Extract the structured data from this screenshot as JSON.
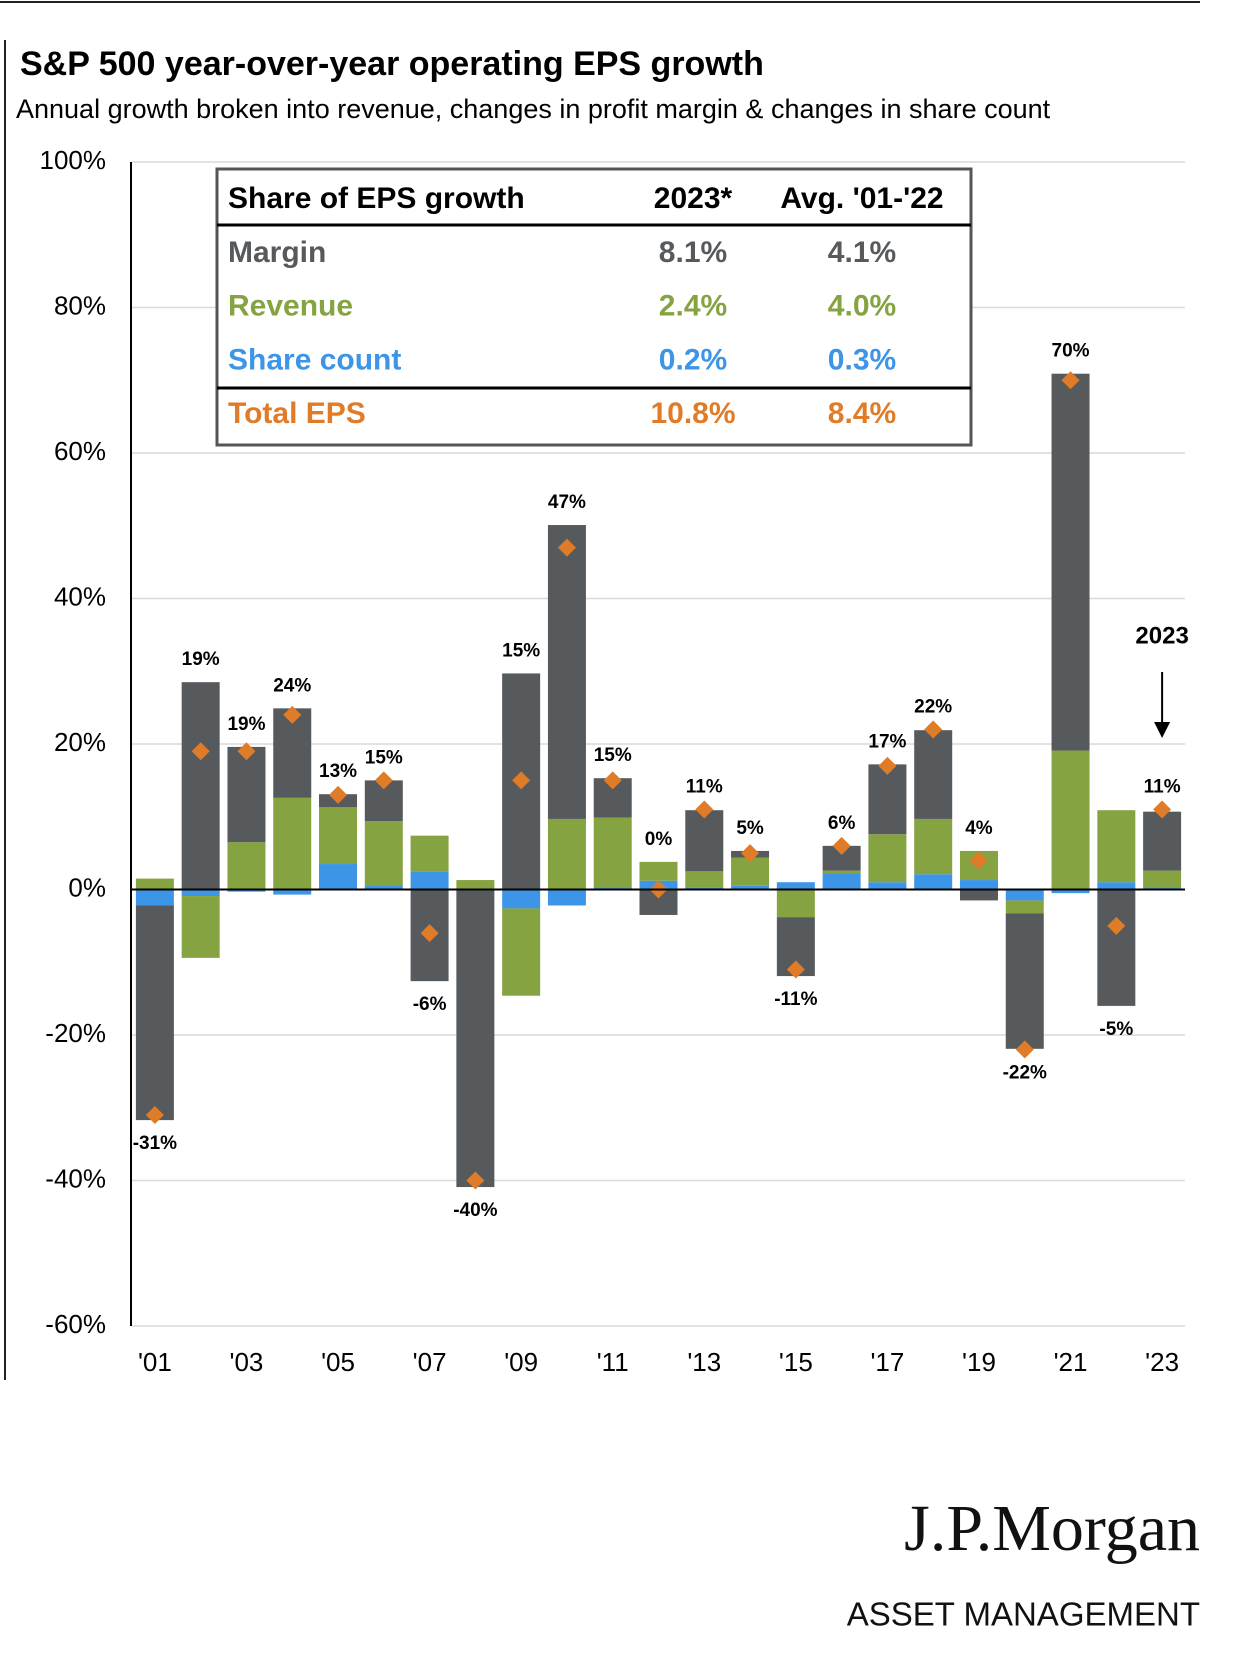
{
  "chart_data": {
    "type": "stacked_bar",
    "title": "S&P 500 year-over-year operating EPS growth",
    "subtitle": "Annual growth broken into revenue, changes in profit margin & changes in share count",
    "categories": [
      "'01",
      null,
      "'03",
      null,
      "'05",
      null,
      "'07",
      null,
      "'09",
      null,
      "'11",
      null,
      "'13",
      null,
      "'15",
      null,
      "'17",
      null,
      "'19",
      null,
      "'21",
      null,
      "'23"
    ],
    "series": [
      {
        "name": "Margin",
        "color": "#575a5d",
        "values": [
          -29.5,
          28.5,
          13.1,
          12.3,
          1.8,
          5.6,
          -12.6,
          -40.9,
          29.7,
          40.4,
          5.4,
          -3.5,
          8.4,
          0.9,
          -8.1,
          3.4,
          9.6,
          12.2,
          -1.5,
          -18.6,
          51.8,
          -16,
          8.1
        ]
      },
      {
        "name": "Revenue",
        "color": "#86a342",
        "values": [
          1.5,
          -8.5,
          6.5,
          12.6,
          7.8,
          8.8,
          4.9,
          1.3,
          -12,
          9.7,
          9.7,
          2.6,
          2.2,
          3.9,
          -3.8,
          0.4,
          6.6,
          7.6,
          4.0,
          -1.8,
          19.1,
          9.9,
          2.4
        ]
      },
      {
        "name": "Share count",
        "color": "#3d95e8",
        "values": [
          -2.2,
          -0.9,
          -0.3,
          -0.7,
          3.5,
          0.6,
          2.5,
          0,
          -2.6,
          -2.2,
          0.2,
          1.2,
          0.3,
          0.5,
          1.0,
          2.2,
          1.0,
          2.1,
          1.3,
          -1.5,
          -0.5,
          1.0,
          0.2
        ]
      }
    ],
    "total": {
      "color": "#e07b27",
      "values": [
        -31,
        19,
        19,
        24,
        13,
        15,
        -6,
        -40,
        15,
        47,
        15,
        0,
        11,
        5,
        -11,
        6,
        17,
        22,
        4,
        -22,
        70,
        -5,
        11
      ],
      "value_labels": [
        "-31%",
        "19%",
        "19%",
        "24%",
        "13%",
        "15%",
        "-6%",
        "-40%",
        "15%",
        "47%",
        "15%",
        "0%",
        "11%",
        "5%",
        "-11%",
        "6%",
        "17%",
        "22%",
        "4%",
        "-22%",
        "70%",
        "-5%",
        "11%"
      ]
    },
    "ylim": [
      -60,
      100
    ],
    "yticks": [
      {
        "value": -60,
        "label": "-60%"
      },
      {
        "value": -40,
        "label": "-40%"
      },
      {
        "value": -20,
        "label": "-20%"
      },
      {
        "value": 0,
        "label": "0%"
      },
      {
        "value": 20,
        "label": "20%"
      },
      {
        "value": 40,
        "label": "40%"
      },
      {
        "value": 60,
        "label": "60%"
      },
      {
        "value": 80,
        "label": "80%"
      },
      {
        "value": 100,
        "label": "100%"
      }
    ],
    "grid": true,
    "annotation": "2023",
    "table": {
      "header": [
        "Share of EPS growth",
        "2023*",
        "Avg. '01-'22"
      ],
      "rows": [
        [
          "Margin",
          "8.1%",
          "4.1%"
        ],
        [
          "Revenue",
          "2.4%",
          "4.0%"
        ],
        [
          "Share count",
          "0.2%",
          "0.3%"
        ],
        [
          "Total EPS",
          "10.8%",
          "8.4%"
        ]
      ]
    }
  },
  "branding": [
    "J.P.Morgan",
    "ASSET MANAGEMENT"
  ]
}
